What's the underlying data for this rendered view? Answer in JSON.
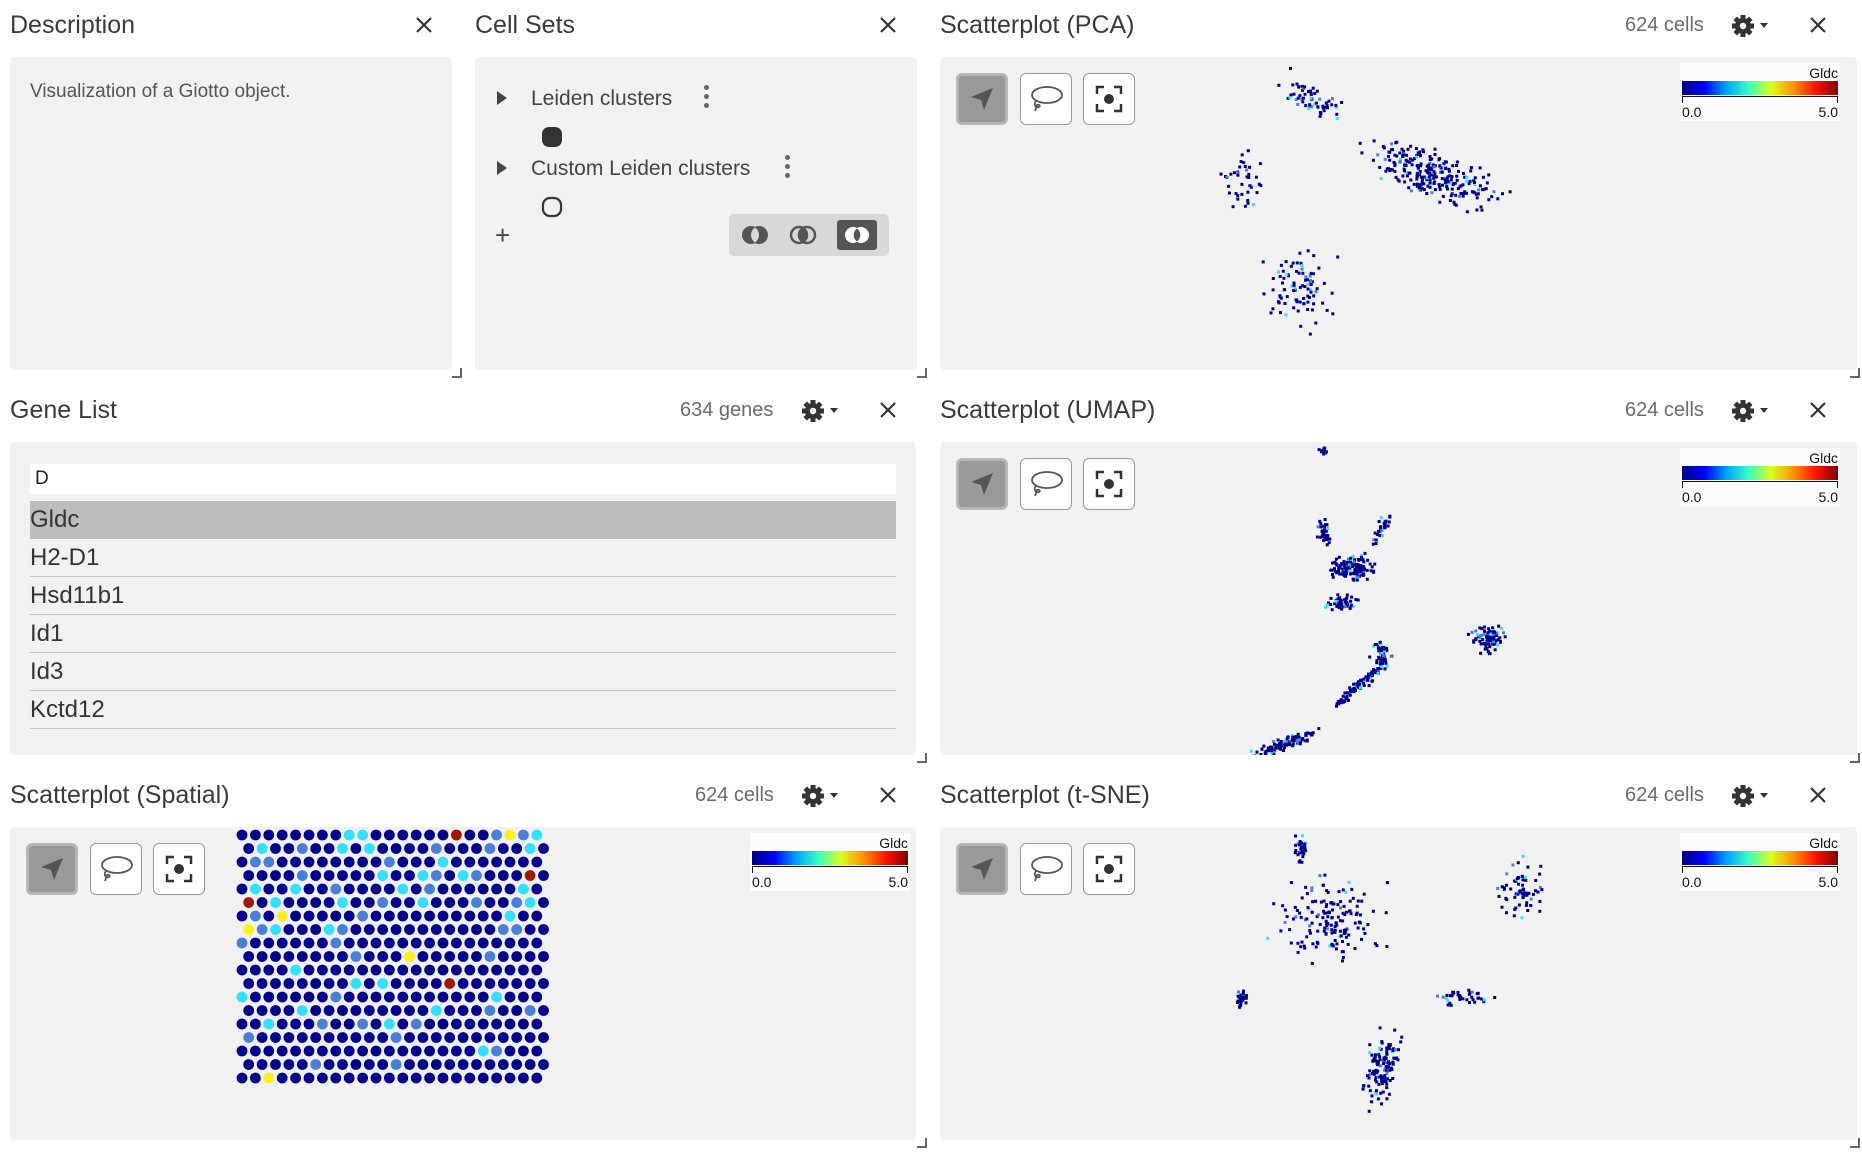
{
  "colors": {
    "panel_bg": "#f1f1f1",
    "selected_row": "#bdbdbd",
    "dot_low": "#00008b",
    "dot_mid": "#4a7fd6",
    "dot_cyan": "#33e0ff",
    "dot_yellow": "#ffee22",
    "dot_high": "#a01a00"
  },
  "description": {
    "title": "Description",
    "text": "Visualization of a Giotto object.",
    "close_icon": "close-icon"
  },
  "cell_sets": {
    "title": "Cell Sets",
    "items": [
      {
        "label": "Leiden clusters",
        "selector": "filled"
      },
      {
        "label": "Custom Leiden clusters",
        "selector": "empty"
      }
    ],
    "add_label": "+",
    "set_ops": [
      "union-icon",
      "intersection-icon",
      "complement-icon"
    ]
  },
  "gene_list": {
    "title": "Gene List",
    "count": "634 genes",
    "search_value": "D",
    "genes": [
      "Gldc",
      "H2-D1",
      "Hsd11b1",
      "Id1",
      "Id3",
      "Kctd12"
    ],
    "selected": "Gldc"
  },
  "scatterplots": {
    "pca": {
      "title": "Scatterplot (PCA)",
      "count": "624 cells"
    },
    "umap": {
      "title": "Scatterplot (UMAP)",
      "count": "624 cells"
    },
    "spatial": {
      "title": "Scatterplot (Spatial)",
      "count": "624 cells"
    },
    "tsne": {
      "title": "Scatterplot (t-SNE)",
      "count": "624 cells"
    }
  },
  "legend": {
    "gene": "Gldc",
    "min": "0.0",
    "max": "5.0"
  },
  "tools": [
    "pointer-icon",
    "lasso-icon",
    "recenter-icon"
  ]
}
